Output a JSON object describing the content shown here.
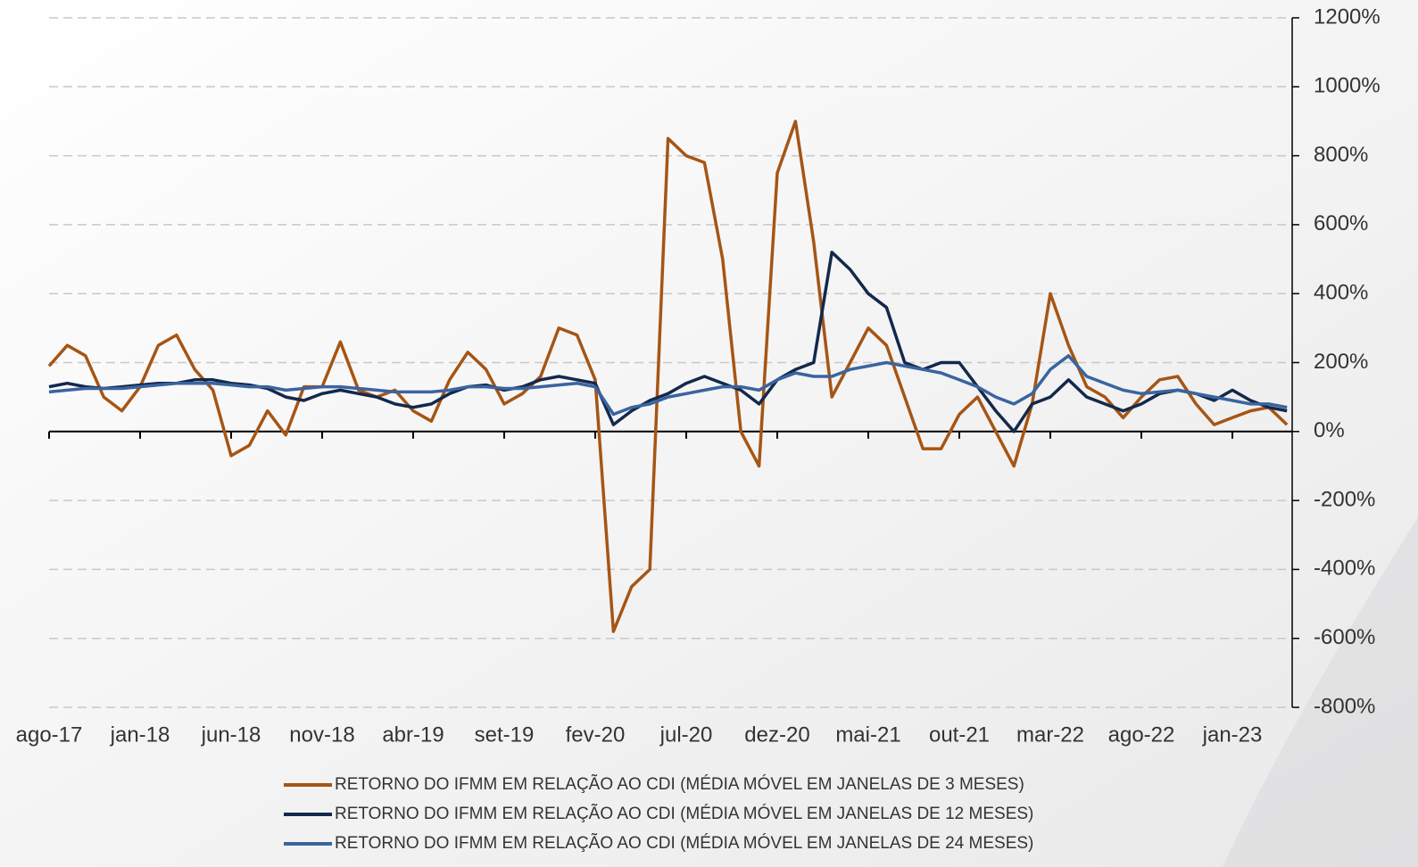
{
  "chart_data": {
    "type": "line",
    "categories": [
      "ago-17",
      null,
      null,
      null,
      null,
      "jan-18",
      null,
      null,
      null,
      null,
      "jun-18",
      null,
      null,
      null,
      null,
      "nov-18",
      null,
      null,
      null,
      null,
      "abr-19",
      null,
      null,
      null,
      null,
      "set-19",
      null,
      null,
      null,
      null,
      "fev-20",
      null,
      null,
      null,
      null,
      "jul-20",
      null,
      null,
      null,
      null,
      "dez-20",
      null,
      null,
      null,
      null,
      "mai-21",
      null,
      null,
      null,
      null,
      "out-21",
      null,
      null,
      null,
      null,
      "mar-22",
      null,
      null,
      null,
      null,
      "ago-22",
      null,
      null,
      null,
      null,
      "jan-23",
      null,
      null,
      null
    ],
    "series": [
      {
        "name": "RETORNO DO IFMM EM RELAÇÃO AO CDI (MÉDIA MÓVEL EM JANELAS DE 3 MESES)",
        "color": "#a65514",
        "values": [
          190,
          250,
          220,
          100,
          60,
          130,
          250,
          280,
          180,
          120,
          -70,
          -40,
          60,
          -10,
          130,
          130,
          260,
          120,
          100,
          120,
          60,
          30,
          150,
          230,
          180,
          80,
          110,
          160,
          300,
          280,
          150,
          -580,
          -450,
          -400,
          850,
          800,
          780,
          500,
          0,
          -100,
          750,
          900,
          550,
          100,
          200,
          300,
          250,
          100,
          -50,
          -50,
          50,
          100,
          0,
          -100,
          80,
          400,
          250,
          130,
          100,
          40,
          100,
          150,
          160,
          80,
          20,
          40,
          60,
          70,
          20
        ]
      },
      {
        "name": "RETORNO DO IFMM EM RELAÇÃO AO CDI (MÉDIA MÓVEL EM JANELAS DE 12 MESES)",
        "color": "#13294b",
        "values": [
          130,
          140,
          130,
          125,
          130,
          135,
          140,
          140,
          150,
          150,
          140,
          135,
          125,
          100,
          90,
          110,
          120,
          110,
          100,
          80,
          70,
          80,
          110,
          130,
          135,
          120,
          130,
          150,
          160,
          150,
          140,
          20,
          60,
          90,
          110,
          140,
          160,
          140,
          120,
          80,
          150,
          180,
          200,
          520,
          470,
          400,
          360,
          200,
          180,
          200,
          200,
          130,
          60,
          0,
          80,
          100,
          150,
          100,
          80,
          60,
          80,
          110,
          120,
          110,
          90,
          120,
          90,
          70,
          60
        ]
      },
      {
        "name": "RETORNO DO IFMM EM RELAÇÃO AO CDI (MÉDIA MÓVEL EM JANELAS DE 24 MESES)",
        "color": "#3a64a0",
        "values": [
          115,
          120,
          125,
          125,
          125,
          130,
          135,
          140,
          140,
          140,
          135,
          130,
          130,
          120,
          125,
          130,
          130,
          125,
          120,
          115,
          115,
          115,
          120,
          130,
          130,
          125,
          125,
          130,
          135,
          140,
          130,
          50,
          70,
          80,
          100,
          110,
          120,
          130,
          130,
          120,
          150,
          170,
          160,
          160,
          180,
          190,
          200,
          190,
          180,
          170,
          150,
          130,
          100,
          80,
          110,
          180,
          220,
          160,
          140,
          120,
          110,
          115,
          120,
          110,
          100,
          90,
          80,
          80,
          70
        ]
      }
    ],
    "ylim": [
      -800,
      1200
    ],
    "yticks": [
      {
        "value": -800,
        "label": "-800%"
      },
      {
        "value": -600,
        "label": "-600%"
      },
      {
        "value": -400,
        "label": "-400%"
      },
      {
        "value": -200,
        "label": "-200%"
      },
      {
        "value": 0,
        "label": "0%"
      },
      {
        "value": 200,
        "label": "200%"
      },
      {
        "value": 400,
        "label": "400%"
      },
      {
        "value": 600,
        "label": "600%"
      },
      {
        "value": 800,
        "label": "800%"
      },
      {
        "value": 1000,
        "label": "1000%"
      },
      {
        "value": 1200,
        "label": "1200%"
      }
    ],
    "grid": true
  }
}
